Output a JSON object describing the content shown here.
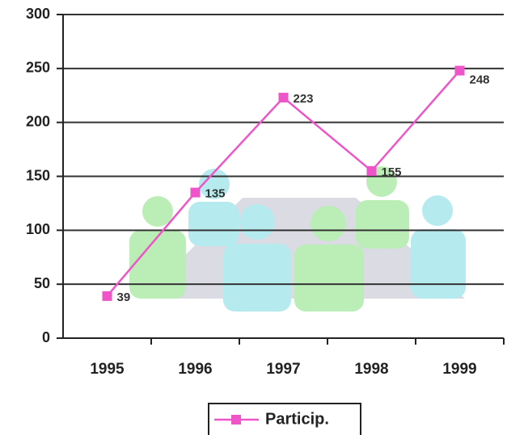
{
  "chart_data": {
    "type": "line",
    "categories": [
      "1995",
      "1996",
      "1997",
      "1998",
      "1999"
    ],
    "series": [
      {
        "name": "Particip.",
        "color": "#ee55c8",
        "values": [
          39,
          135,
          223,
          155,
          248
        ]
      }
    ],
    "ylim": [
      0,
      300
    ],
    "yticks": [
      0,
      50,
      100,
      150,
      200,
      250,
      300
    ],
    "grid": true,
    "legend": "bottom"
  }
}
